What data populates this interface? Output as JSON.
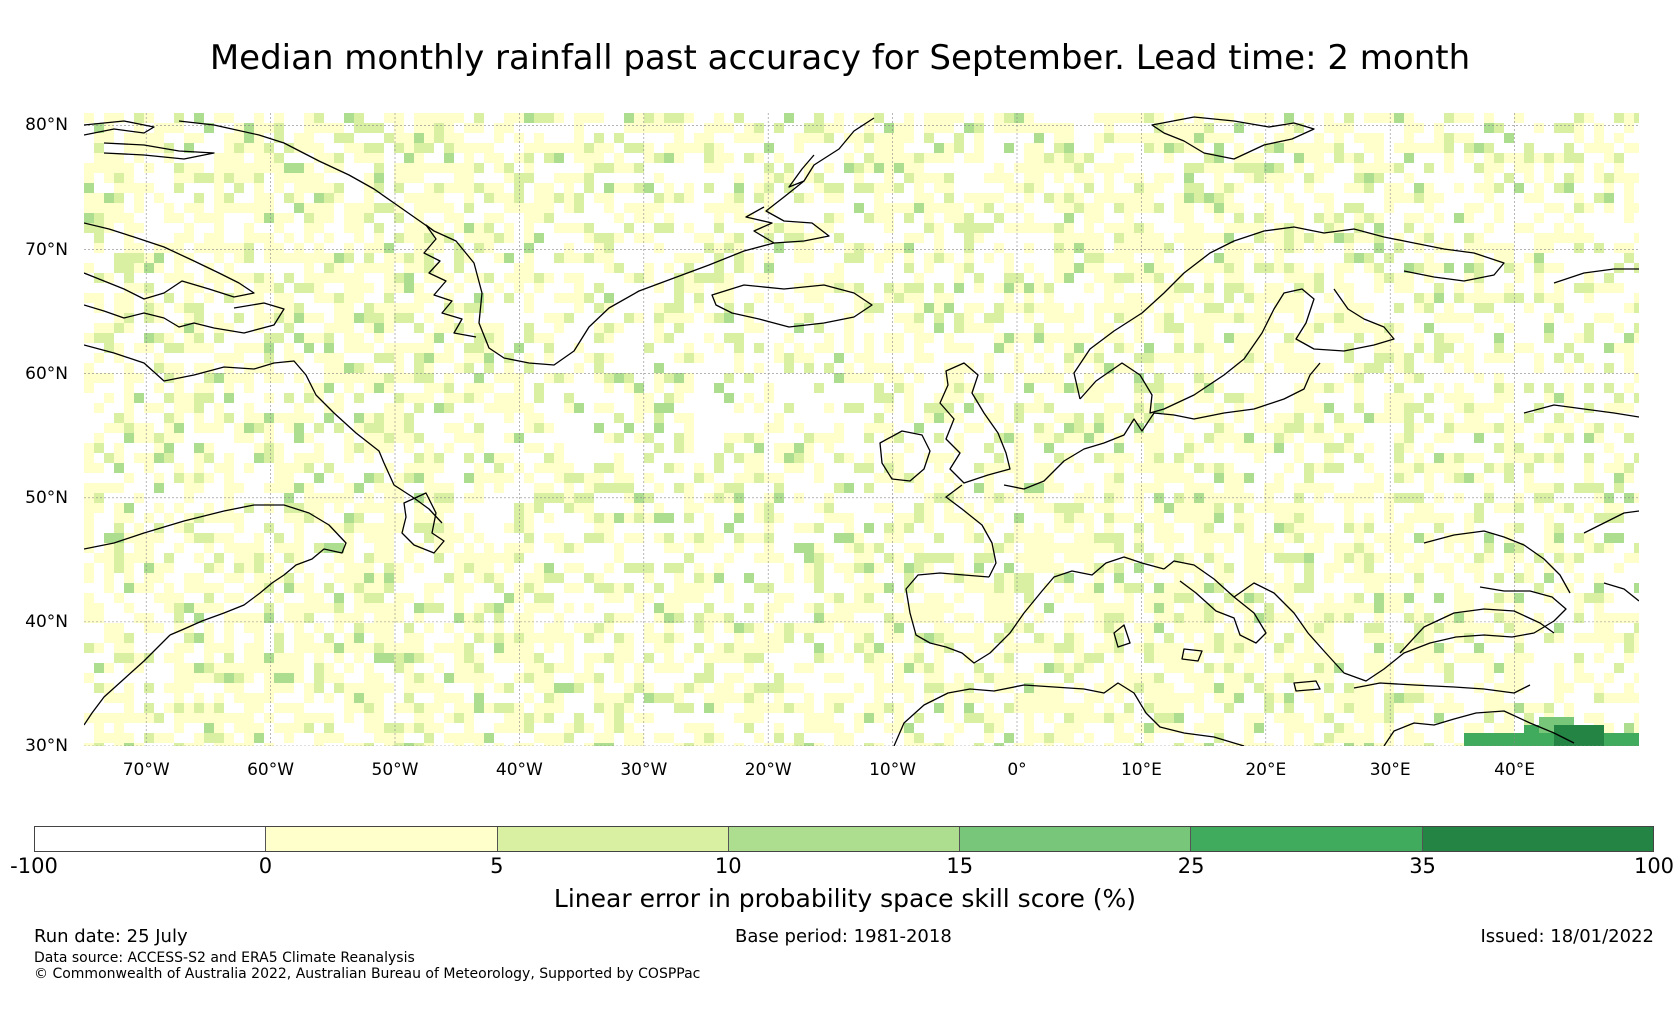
{
  "title": "Median monthly rainfall past accuracy for September. Lead time: 2 month",
  "map": {
    "lat_labels": [
      "80°N",
      "70°N",
      "60°N",
      "50°N",
      "40°N",
      "30°N"
    ],
    "lon_labels": [
      "70°W",
      "60°W",
      "50°W",
      "40°W",
      "30°W",
      "20°W",
      "10°W",
      "0°",
      "10°E",
      "20°E",
      "30°E",
      "40°E"
    ],
    "lat_range": [
      30,
      81
    ],
    "lon_range": [
      -75,
      50
    ],
    "grid": true,
    "projection": "plate carree"
  },
  "colorbar": {
    "ticks": [
      "-100",
      "0",
      "5",
      "10",
      "15",
      "25",
      "35",
      "100"
    ],
    "colors": [
      "#ffffff",
      "#ffffcc",
      "#d9f0a3",
      "#addd8e",
      "#78c679",
      "#41ab5d",
      "#238443"
    ],
    "label": "Linear error in probability space skill score (%)"
  },
  "footer": {
    "run_date": "Run date: 25 July",
    "base_period": "Base period: 1981-2018",
    "issued": "Issued: 18/01/2022",
    "data_source": "Data source: ACCESS-S2 and ERA5 Climate Reanalysis",
    "copyright": "© Commonwealth of Australia 2022, Australian Bureau of Meteorology, Supported by COSPPac"
  }
}
